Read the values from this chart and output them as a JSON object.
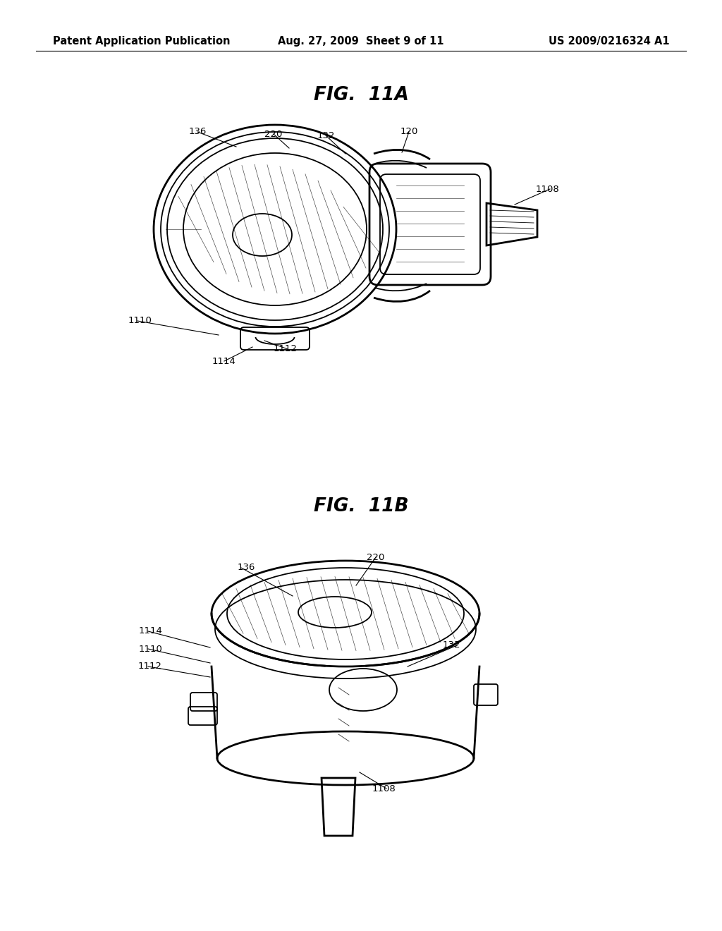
{
  "background_color": "#ffffff",
  "header_left": "Patent Application Publication",
  "header_center": "Aug. 27, 2009  Sheet 9 of 11",
  "header_right": "US 2009/0216324 A1",
  "header_fontsize": 10.5,
  "fig11a_title": "FIG.  11A",
  "fig11b_title": "FIG.  11B",
  "title_fontsize": 19,
  "line_color": "#000000",
  "label_fontsize": 9.5
}
